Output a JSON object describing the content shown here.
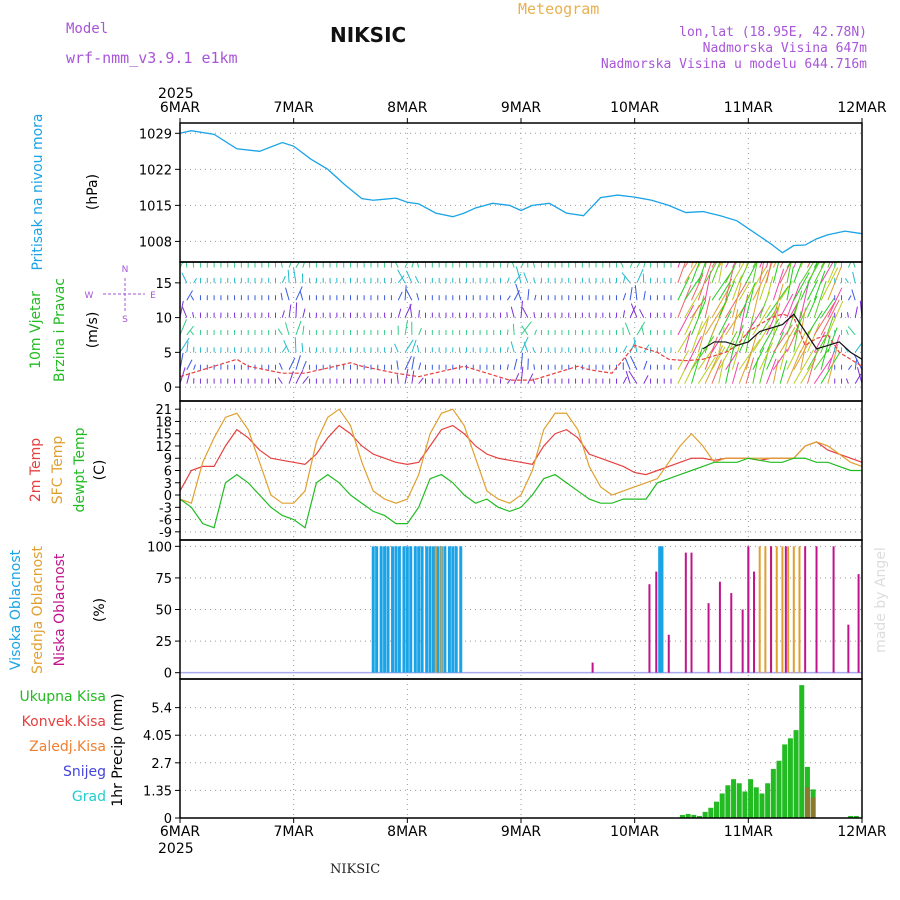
{
  "header": {
    "model_label": "Model",
    "model_name": "wrf-nmm_v3.9.1 e1km",
    "station": "NIKSIC",
    "product": "Meteogram",
    "lonlat": "lon,lat (18.95E, 42.78N)",
    "elev": "Nadmorska Visina 647m",
    "elev_model": "Nadmorska Visina u modelu 644.716m"
  },
  "footer": {
    "station": "NIKSIC",
    "credit": "made by Angel"
  },
  "colors": {
    "pressure": "#1aa3e6",
    "temp2m": "#e64040",
    "sfc": "#e0a030",
    "dew": "#22bb22",
    "high_cloud": "#1aa3e6",
    "mid_cloud": "#e0a030",
    "low_cloud": "#c0148c",
    "rain": "#22bb22",
    "conv": "#e64040",
    "frz": "#f08030",
    "snow": "#4444dd",
    "grad": "#22cccc"
  },
  "chart_data": [
    {
      "type": "line",
      "id": "pressure",
      "ylabel_main": "Pritisak na nivou mora",
      "ylabel_unit": "(hPa)",
      "yticks": [
        1008,
        1015,
        1022,
        1029
      ],
      "ylim": [
        1004,
        1031
      ],
      "x": [
        0,
        0.1,
        0.3,
        0.5,
        0.7,
        0.9,
        1.0,
        1.15,
        1.3,
        1.45,
        1.6,
        1.7,
        1.8,
        1.9,
        2.0,
        2.1,
        2.25,
        2.4,
        2.5,
        2.6,
        2.75,
        2.9,
        3.0,
        3.1,
        3.25,
        3.4,
        3.55,
        3.7,
        3.85,
        4.0,
        4.15,
        4.3,
        4.45,
        4.6,
        4.75,
        4.9,
        5.0,
        5.1,
        5.2,
        5.3,
        5.4,
        5.5,
        5.6,
        5.7,
        5.85,
        6.0
      ],
      "series": [
        {
          "values": [
            1029,
            1029.5,
            1028.8,
            1026,
            1025.5,
            1027.2,
            1026.5,
            1024,
            1022,
            1019,
            1016.3,
            1016,
            1016.2,
            1016.4,
            1015.6,
            1015.3,
            1013.5,
            1012.8,
            1013.5,
            1014.5,
            1015.4,
            1015,
            1014,
            1015,
            1015.4,
            1013.5,
            1013,
            1016.5,
            1017,
            1016.6,
            1016,
            1015,
            1013.6,
            1013.8,
            1013,
            1012,
            1010.5,
            1009,
            1007.5,
            1005.8,
            1007.2,
            1007.3,
            1008.5,
            1009.3,
            1010,
            1009.5
          ]
        }
      ]
    },
    {
      "type": "wind",
      "id": "wind",
      "ylabel_main": "10m Vjetar",
      "ylabel_sub": "Brzina i Pravac",
      "ylabel_unit": "(m/s)",
      "compass": {
        "n": "N",
        "s": "S",
        "e": "E",
        "w": "W"
      },
      "yticks": [
        0,
        5,
        10,
        15
      ],
      "ylim": [
        -2,
        18
      ],
      "x": [
        0,
        0.5,
        0.6,
        0.9,
        1.1,
        1.5,
        1.6,
        1.9,
        2.1,
        2.5,
        2.6,
        2.9,
        3.1,
        3.5,
        3.6,
        3.8,
        4.0,
        4.2,
        4.3,
        4.45,
        4.6,
        4.7,
        4.8,
        4.9,
        5.0,
        5.1,
        5.2,
        5.3,
        5.4,
        5.5,
        5.6,
        5.7,
        5.8,
        5.9,
        6.0
      ],
      "series": [
        {
          "name": "gust",
          "values": [
            1.5,
            4,
            3,
            2,
            2,
            3.5,
            3,
            2,
            1.5,
            3,
            2.5,
            1,
            1,
            3,
            2.5,
            2,
            6,
            5,
            4,
            3.8,
            4,
            4.5,
            5,
            6,
            8,
            9,
            10,
            10.5,
            10,
            6,
            7,
            7.5,
            5,
            4,
            3
          ]
        },
        {
          "name": "mean",
          "values": [
            null,
            null,
            null,
            null,
            null,
            null,
            null,
            null,
            null,
            null,
            null,
            null,
            null,
            null,
            null,
            null,
            null,
            null,
            null,
            null,
            5.5,
            6.5,
            6.5,
            6,
            6.5,
            8,
            8.5,
            9,
            10.5,
            8,
            5.5,
            6,
            6.5,
            5,
            4
          ]
        }
      ]
    },
    {
      "type": "line",
      "id": "temperature",
      "ylabels": [
        "2m Temp",
        "SFC Temp",
        "dewpt Temp"
      ],
      "ylabel_unit": "(C)",
      "yticks": [
        -9,
        -6,
        -3,
        0,
        3,
        6,
        9,
        12,
        15,
        18,
        21
      ],
      "ylim": [
        -11,
        23
      ],
      "x": [
        0,
        0.1,
        0.2,
        0.3,
        0.4,
        0.5,
        0.6,
        0.7,
        0.8,
        0.9,
        1.0,
        1.1,
        1.2,
        1.3,
        1.4,
        1.5,
        1.6,
        1.7,
        1.8,
        1.9,
        2.0,
        2.1,
        2.2,
        2.3,
        2.4,
        2.5,
        2.6,
        2.7,
        2.8,
        2.9,
        3.0,
        3.1,
        3.2,
        3.3,
        3.4,
        3.5,
        3.6,
        3.7,
        3.8,
        3.9,
        4.0,
        4.1,
        4.2,
        4.3,
        4.4,
        4.5,
        4.6,
        4.7,
        4.8,
        4.9,
        5.0,
        5.1,
        5.2,
        5.3,
        5.4,
        5.5,
        5.6,
        5.7,
        5.8,
        5.9,
        6.0
      ],
      "series": [
        {
          "name": "2m Temp",
          "values": [
            1,
            6,
            7,
            7,
            12,
            16,
            14,
            11,
            9,
            8.5,
            8,
            7.5,
            10,
            14,
            17,
            15,
            12,
            10,
            9,
            8,
            7.5,
            8,
            12,
            16,
            17,
            15,
            12,
            10,
            9,
            8.5,
            8,
            7.5,
            12,
            15,
            16,
            14,
            10,
            9,
            8,
            7,
            5.5,
            5,
            6,
            7,
            8,
            9,
            9,
            8.5,
            9,
            9,
            9,
            8.5,
            9,
            9,
            9,
            12,
            13,
            11,
            10,
            9,
            8
          ]
        },
        {
          "name": "SFC Temp",
          "values": [
            -1,
            -2,
            8,
            14,
            19,
            20,
            16,
            8,
            0,
            -2,
            -2,
            1,
            13,
            19,
            21,
            17,
            8,
            1,
            -1,
            -2,
            -1,
            5,
            15,
            20,
            21,
            17,
            9,
            1,
            -1,
            -2,
            0,
            6,
            16,
            20,
            20,
            16,
            7,
            2,
            0,
            1,
            2,
            3,
            4,
            8,
            12,
            15,
            12,
            8,
            9,
            9,
            9,
            9,
            9,
            9,
            9,
            12,
            13,
            12,
            10,
            8,
            7
          ]
        },
        {
          "name": "dewpt Temp",
          "values": [
            -1,
            -3,
            -7,
            -8,
            3,
            5,
            3,
            0,
            -3,
            -5,
            -6,
            -8,
            3,
            5,
            3,
            0,
            -2,
            -4,
            -5,
            -7,
            -7,
            -3,
            4,
            5,
            3,
            0,
            -2,
            -1,
            -3,
            -4,
            -3,
            0,
            4,
            5,
            3,
            1,
            -1,
            -2,
            -2,
            -1,
            -1,
            -1,
            3,
            4,
            5,
            6,
            7,
            8,
            8,
            8,
            9,
            8.5,
            8,
            8,
            9,
            9,
            8,
            8,
            7,
            6,
            6
          ]
        }
      ]
    },
    {
      "type": "bar",
      "id": "cloud",
      "ylabels": [
        "Visoka Oblacnost",
        "Srednja Oblacnost",
        "Niska Oblacnost"
      ],
      "ylabel_unit": "(%)",
      "yticks": [
        0,
        25,
        50,
        75,
        100
      ],
      "ylim": [
        -5,
        105
      ],
      "series": [
        {
          "name": "Visoka Oblacnost",
          "x": [
            1.7,
            1.73,
            1.77,
            1.8,
            1.83,
            1.87,
            1.9,
            1.93,
            1.97,
            2.0,
            2.03,
            2.07,
            2.1,
            2.13,
            2.17,
            2.2,
            2.23,
            2.27,
            2.3,
            2.33,
            2.37,
            2.4,
            2.43,
            2.47,
            4.22,
            4.24
          ],
          "values": [
            100,
            100,
            100,
            100,
            100,
            100,
            100,
            100,
            100,
            100,
            100,
            100,
            100,
            100,
            100,
            100,
            100,
            100,
            100,
            100,
            100,
            100,
            100,
            100,
            100,
            100
          ]
        },
        {
          "name": "Srednja Oblacnost",
          "x": [
            2.25,
            2.3,
            5.0,
            5.1,
            5.15,
            5.2,
            5.25,
            5.3,
            5.35,
            5.4,
            5.45
          ],
          "values": [
            100,
            100,
            100,
            100,
            100,
            100,
            100,
            100,
            100,
            100,
            100
          ]
        },
        {
          "name": "Niska Oblacnost",
          "x": [
            3.63,
            4.13,
            4.19,
            4.3,
            4.45,
            4.5,
            4.65,
            4.75,
            4.85,
            4.95,
            5.0,
            5.05,
            5.2,
            5.33,
            5.5,
            5.6,
            5.75,
            5.88,
            5.97
          ],
          "values": [
            8,
            70,
            80,
            30,
            95,
            95,
            55,
            72,
            63,
            50,
            100,
            80,
            100,
            100,
            100,
            100,
            100,
            38,
            78
          ]
        }
      ]
    },
    {
      "type": "bar",
      "id": "precip",
      "ylabels": [
        "Ukupna Kisa",
        "Konvek.Kisa",
        "Zaledj.Kisa",
        "Snijeg",
        "Grad"
      ],
      "ylabel_main": "1hr Precip (mm)",
      "yticks": [
        0,
        1.35,
        2.7,
        4.05,
        5.4
      ],
      "ylim": [
        0,
        6.8
      ],
      "series": [
        {
          "name": "Ukupna Kisa",
          "x": [
            4.42,
            4.47,
            4.52,
            4.57,
            4.62,
            4.67,
            4.72,
            4.77,
            4.82,
            4.87,
            4.92,
            4.97,
            5.02,
            5.07,
            5.12,
            5.17,
            5.22,
            5.27,
            5.32,
            5.37,
            5.42,
            5.47,
            5.52,
            5.57,
            5.9,
            5.95
          ],
          "values": [
            0.15,
            0.2,
            0.15,
            0.1,
            0.3,
            0.5,
            0.8,
            1.2,
            1.6,
            1.9,
            1.7,
            1.3,
            1.9,
            1.5,
            1.2,
            1.7,
            2.4,
            2.8,
            3.6,
            3.9,
            4.3,
            6.5,
            2.5,
            1.4,
            0.1,
            0.1
          ]
        },
        {
          "name": "Zaledj.Kisa",
          "x": [
            5.52,
            5.57
          ],
          "values": [
            1.5,
            1.0
          ]
        }
      ]
    }
  ],
  "time_axis": {
    "year": "2025",
    "labels": [
      "6MAR",
      "7MAR",
      "8MAR",
      "9MAR",
      "10MAR",
      "11MAR",
      "12MAR"
    ]
  }
}
